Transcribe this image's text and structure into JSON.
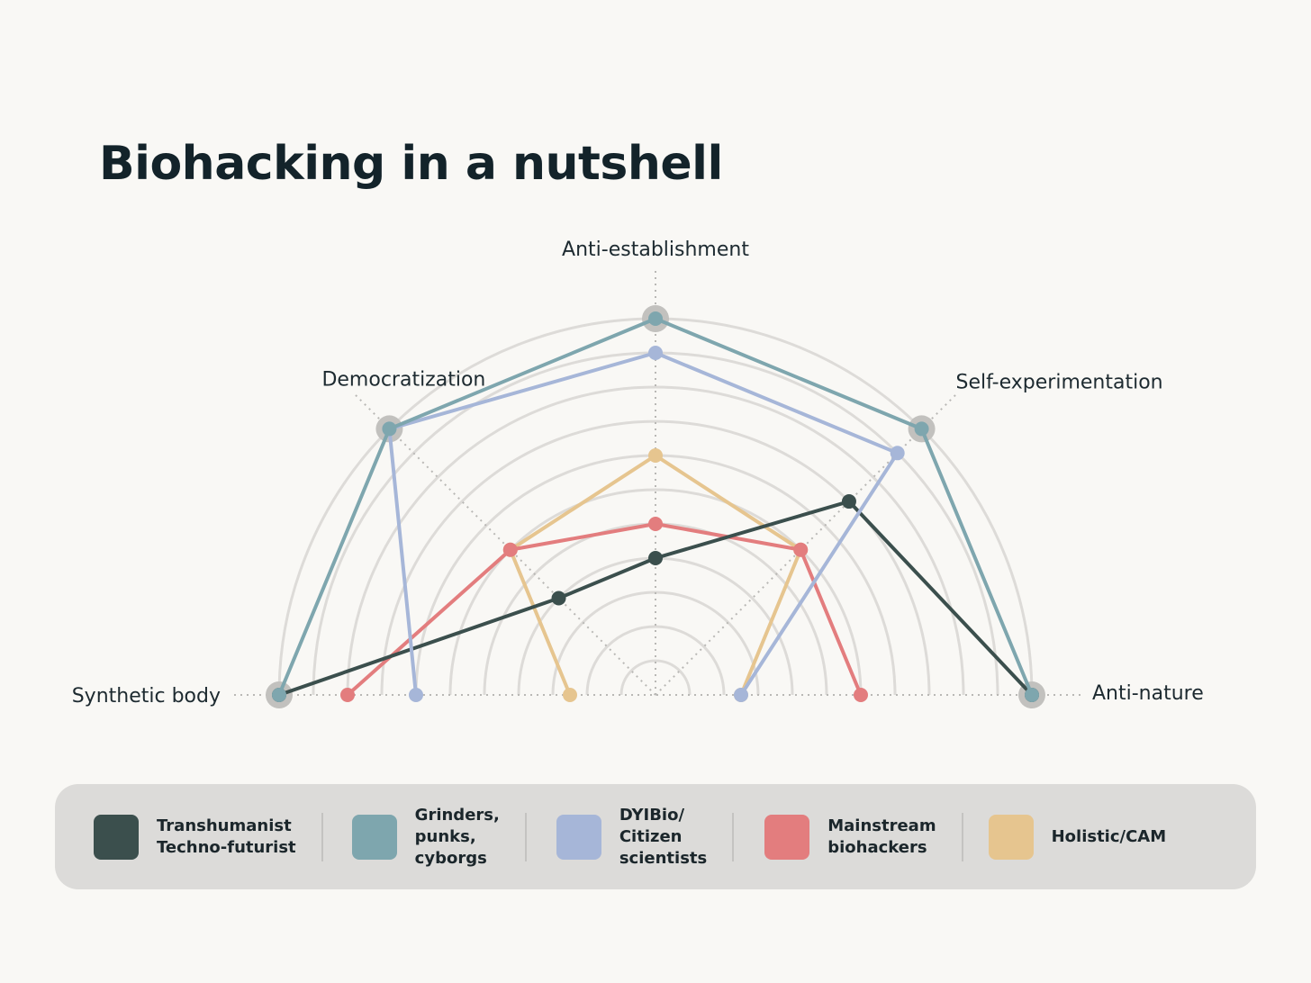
{
  "title": "Biohacking in a nutshell",
  "chart_data": {
    "type": "radar",
    "title": "Biohacking in a nutshell",
    "axes": [
      "Synthetic body",
      "Democratization",
      "Anti-establishment",
      "Self-experimentation",
      "Anti-nature"
    ],
    "scale": {
      "min": 0,
      "max": 11,
      "rings": 11
    },
    "series": [
      {
        "name": "Transhumanist\nTechno-futurist",
        "color": "#3b4f4d",
        "values": [
          11,
          4,
          4,
          8,
          11
        ]
      },
      {
        "name": "Grinders,\npunks,\ncyborgs",
        "color": "#7ea6ae",
        "values": [
          11,
          11,
          11,
          11,
          11
        ]
      },
      {
        "name": "DYIBio/\nCitizen\nscientists",
        "color": "#a6b6d8",
        "values": [
          7,
          11,
          10,
          10,
          2.5
        ]
      },
      {
        "name": "Mainstream\nbiohackers",
        "color": "#e37d7e",
        "values": [
          9,
          6,
          5,
          6,
          6
        ]
      },
      {
        "name": "Holistic/CAM",
        "color": "#e6c58f",
        "values": [
          2.5,
          6,
          7,
          6,
          2.5
        ]
      }
    ]
  }
}
